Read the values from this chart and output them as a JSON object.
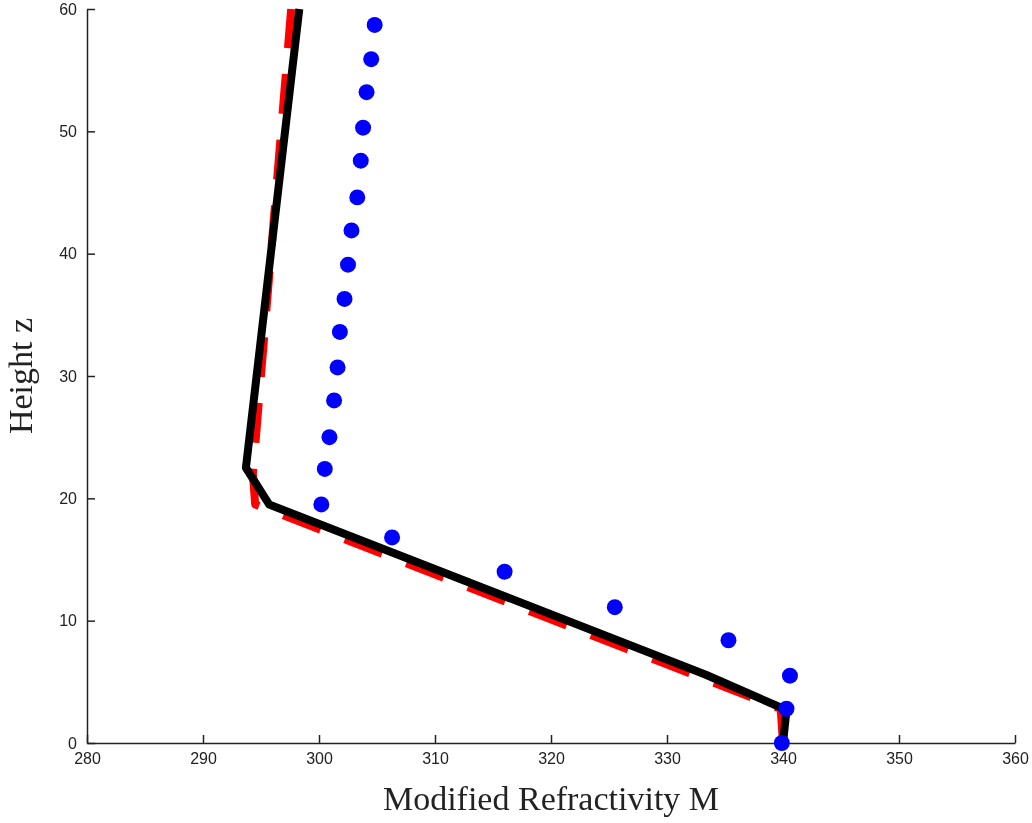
{
  "chart_data": {
    "type": "line",
    "xlabel": "Modified Refractivity M",
    "ylabel": "Height z",
    "xlim": [
      280,
      360
    ],
    "xticks": [
      280,
      290,
      300,
      310,
      320,
      330,
      340,
      350,
      360
    ],
    "ylim": [
      0,
      60
    ],
    "yticks": [
      0,
      10,
      20,
      30,
      40,
      50,
      60
    ],
    "series": [
      {
        "color": "#ff0000",
        "line_style": "dashed",
        "x": [
          340,
          339.8,
          294.5,
          294.3,
          297.6
        ],
        "values": [
          0,
          2.8,
          19.5,
          22,
          60
        ]
      },
      {
        "color": "#000000",
        "line_style": "solid",
        "x": [
          340,
          340.3,
          333.3,
          295.7,
          293.7,
          298.3
        ],
        "values": [
          0,
          2.7,
          5.6,
          19.5,
          22.5,
          60
        ]
      },
      {
        "type": "scatter",
        "color": "#0000ff",
        "marker": "circle",
        "x": [
          339.9,
          340.3,
          340.6,
          335.3,
          325.5,
          316.0,
          306.3,
          300.2,
          300.5,
          300.9,
          301.3,
          301.6,
          301.8,
          302.2,
          302.5,
          302.8,
          303.3,
          303.6,
          303.8,
          304.1,
          304.5,
          304.8
        ],
        "values": [
          0,
          2.8,
          5.5,
          8.4,
          11.1,
          14.0,
          16.8,
          19.5,
          22.4,
          25.0,
          28.0,
          30.7,
          33.6,
          36.3,
          39.1,
          41.9,
          44.6,
          47.6,
          50.3,
          53.2,
          55.9,
          58.7
        ]
      }
    ]
  }
}
